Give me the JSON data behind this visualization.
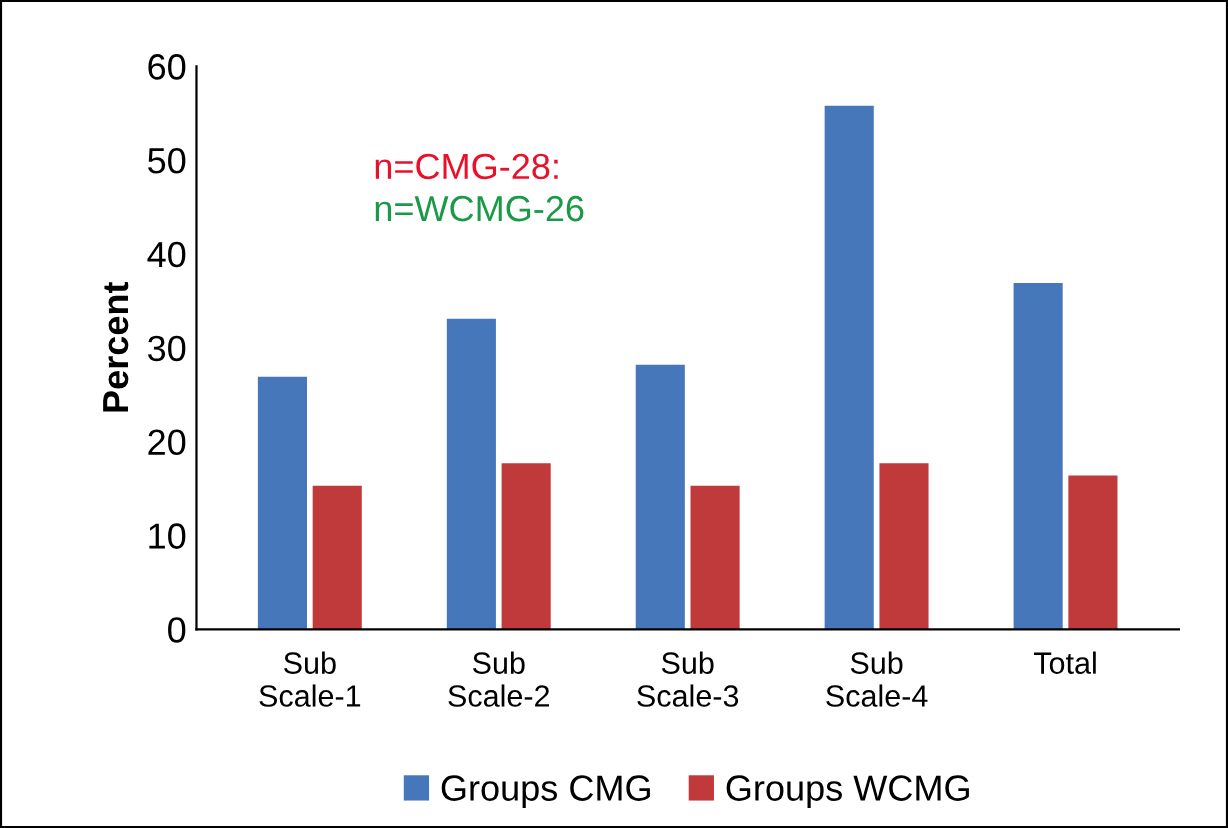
{
  "chart_data": {
    "type": "bar",
    "ylabel": "Percent",
    "categories": [
      "Sub\nScale-1",
      "Sub\nScale-2",
      "Sub\nScale-3",
      "Sub\nScale-4",
      "Total"
    ],
    "series": [
      {
        "name": "Groups CMG",
        "color": "#4677bb",
        "values": [
          26.9,
          33.1,
          28.2,
          55.8,
          36.9
        ]
      },
      {
        "name": "Groups WCMG",
        "color": "#c0393b",
        "values": [
          15.3,
          17.7,
          15.3,
          17.7,
          16.4
        ]
      }
    ],
    "ylim": [
      0,
      60
    ],
    "yticks": [
      0,
      10,
      20,
      30,
      40,
      50,
      60
    ],
    "grid": false,
    "legend": "bottom",
    "annotations": [
      "n=CMG-28:",
      "n=WCMG-26"
    ]
  }
}
